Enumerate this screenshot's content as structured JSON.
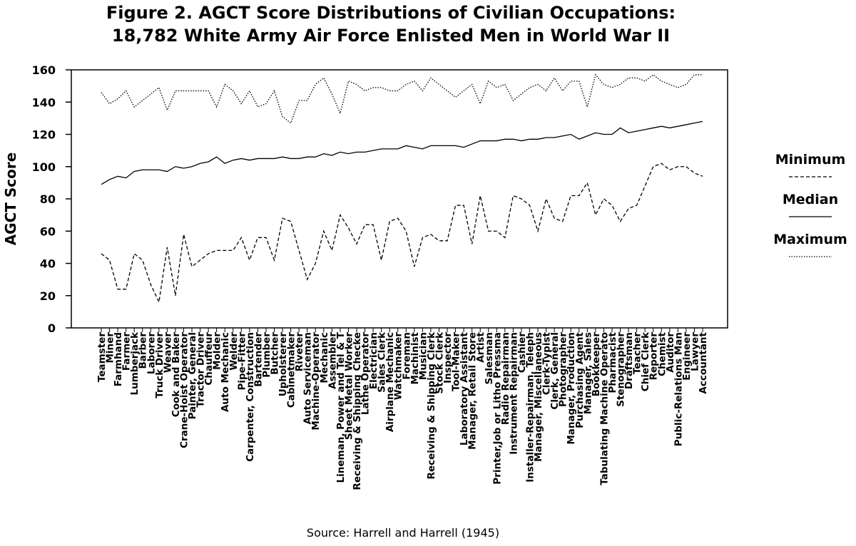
{
  "chart_data": {
    "type": "line",
    "title": [
      "Figure 2.  AGCT Score Distributions of Civilian Occupations:",
      "18,782 White Army Air Force Enlisted Men in World War II"
    ],
    "y_label": "AGCT Score",
    "source": "Source:  Harrell and Harrell (1945)",
    "categories": [
      "Teamster",
      "Miner",
      "Farmhand",
      "Farmer",
      "Lumberjack",
      "Barber",
      "Laborer",
      "Truck Driver",
      "Weaver",
      "Cook and Baker",
      "Crane-Hoist Operator",
      "Painter, General",
      "Tractor Driver",
      "Chauffeur",
      "Molder",
      "Auto Mechanic",
      "Welder",
      "Pipe-Fitter",
      "Carpenter, Construction",
      "Bartender",
      "Plumber",
      "Butcher",
      "Upholsterer",
      "Cabinetmaker",
      "Riveter",
      "Auto Serviceman",
      "Machine-Operator",
      "Mechanic",
      "Assembler",
      "Lineman, Power and Tel & T",
      "Sheet Metal Worker",
      "Receiving & Shipping Checke",
      "Lathe Operator",
      "Electrician",
      "Sales Clerk",
      "Airplane Mechanic",
      "Watchmaker",
      "Foreman",
      "Machinist",
      "Musician",
      "Receiving & Shipping Clerk",
      "Stock Clerk",
      "Inspector",
      "Tool-Maker",
      "Laboratory Assistant",
      "Manager, Retail Store",
      "Artist",
      "Salesman",
      "Printer,Job or Litho Pressma",
      "Radio Repairman",
      "Instrument Repairman",
      "Cashier",
      "Installer-Repairman, Teleph",
      "Manager, Miscellaneous",
      "Clerk-Typist",
      "Clerk, General",
      "Photographer",
      "Manager, Production",
      "Purchasing Agent",
      "Manager, Sales",
      "Bookkeeper",
      "Tabulating Machine Operato",
      "Pharmacist",
      "Stenographer",
      "Draftsman",
      "Teacher",
      "Chief Clerk",
      "Reporter",
      "Chemist",
      "Auditor",
      "Public-Relations Man",
      "Engineer",
      "Lawyer",
      "Accountant"
    ],
    "series": [
      {
        "name": "Minimum",
        "color": "#000000",
        "line_style": "dashed",
        "values": [
          46,
          42,
          24,
          24,
          46,
          42,
          27,
          16,
          50,
          20,
          58,
          38,
          42,
          46,
          48,
          48,
          48,
          56,
          42,
          56,
          56,
          42,
          68,
          66,
          48,
          30,
          40,
          60,
          48,
          70,
          62,
          52,
          64,
          64,
          42,
          66,
          68,
          60,
          38,
          56,
          58,
          54,
          54,
          76,
          76,
          52,
          82,
          60,
          60,
          56,
          82,
          80,
          76,
          60,
          80,
          68,
          66,
          82,
          82,
          90,
          70,
          80,
          76,
          66,
          74,
          76,
          88,
          100,
          102,
          98,
          100,
          100,
          96,
          94
        ]
      },
      {
        "name": "Median",
        "color": "#000000",
        "line_style": "solid",
        "values": [
          89,
          92,
          94,
          93,
          97,
          98,
          98,
          98,
          97,
          100,
          99,
          100,
          102,
          103,
          106,
          102,
          104,
          105,
          104,
          105,
          105,
          105,
          106,
          105,
          105,
          106,
          106,
          108,
          107,
          109,
          108,
          109,
          109,
          110,
          111,
          111,
          111,
          113,
          112,
          111,
          113,
          113,
          113,
          113,
          112,
          114,
          116,
          116,
          116,
          117,
          117,
          116,
          117,
          117,
          118,
          118,
          119,
          120,
          117,
          119,
          121,
          120,
          120,
          124,
          121,
          122,
          123,
          124,
          125,
          124,
          125,
          126,
          127,
          128
        ]
      },
      {
        "name": "Maximum",
        "color": "#000000",
        "line_style": "dotted",
        "values": [
          146,
          139,
          142,
          147,
          137,
          141,
          145,
          149,
          135,
          147,
          147,
          147,
          147,
          147,
          137,
          151,
          147,
          139,
          147,
          137,
          139,
          147,
          131,
          127,
          141,
          141,
          151,
          155,
          145,
          133,
          153,
          151,
          147,
          149,
          149,
          147,
          147,
          151,
          153,
          147,
          155,
          151,
          147,
          143,
          147,
          151,
          139,
          153,
          149,
          151,
          141,
          145,
          149,
          151,
          147,
          155,
          147,
          153,
          153,
          137,
          157,
          151,
          149,
          151,
          155,
          155,
          153,
          157,
          153,
          151,
          149,
          151,
          157,
          157
        ]
      }
    ],
    "ylim": [
      0,
      160
    ],
    "yticks": [
      0,
      20,
      40,
      60,
      80,
      100,
      120,
      140,
      160
    ],
    "legend": "right"
  }
}
